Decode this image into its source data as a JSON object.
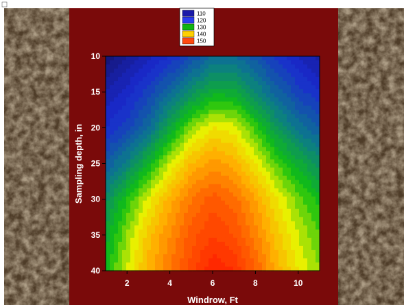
{
  "slide": {
    "panel_color": "#7a0a0a",
    "stone_color": "#5c4730"
  },
  "chart_data": {
    "type": "heatmap",
    "subtype": "filled-contour",
    "xlabel": "Windrow, Ft",
    "ylabel": "Sampling depth, in",
    "xlim": [
      1,
      11
    ],
    "ylim": [
      10,
      40
    ],
    "y_inverted": true,
    "x_ticks": [
      "2",
      "4",
      "6",
      "8",
      "10"
    ],
    "y_ticks": [
      "10",
      "15",
      "20",
      "25",
      "30",
      "35",
      "40"
    ],
    "x": [
      1,
      2,
      3,
      4,
      5,
      6,
      7,
      8,
      9,
      10,
      11
    ],
    "y": [
      10,
      15,
      20,
      25,
      30,
      35,
      40
    ],
    "z": [
      [
        100,
        104,
        107,
        110,
        114,
        118,
        118,
        115,
        111,
        108,
        105
      ],
      [
        106,
        109,
        113,
        118,
        123,
        127,
        127,
        122,
        117,
        113,
        110
      ],
      [
        110,
        113,
        118,
        126,
        134,
        138,
        137,
        131,
        124,
        119,
        116
      ],
      [
        116,
        121,
        128,
        136,
        142,
        145,
        143,
        138,
        132,
        127,
        123
      ],
      [
        123,
        130,
        137,
        143,
        148,
        151,
        149,
        144,
        138,
        133,
        129
      ],
      [
        127,
        134,
        141,
        146,
        151,
        154,
        152,
        147,
        141,
        136,
        132
      ],
      [
        129,
        136,
        143,
        148,
        153,
        158,
        156,
        150,
        143,
        138,
        134
      ]
    ],
    "legend": {
      "position": "top-center",
      "entries": [
        {
          "label": "110",
          "color": "#1a1aa8"
        },
        {
          "label": "120",
          "color": "#2a3cf0"
        },
        {
          "label": "130",
          "color": "#10b410"
        },
        {
          "label": "140",
          "color": "#ffd000"
        },
        {
          "label": "150",
          "color": "#ff4a10"
        }
      ]
    },
    "color_stops": [
      {
        "v": 100,
        "c": "#141470"
      },
      {
        "v": 110,
        "c": "#1a2ad0"
      },
      {
        "v": 120,
        "c": "#0c7a8a"
      },
      {
        "v": 130,
        "c": "#10c010"
      },
      {
        "v": 137,
        "c": "#e8f000"
      },
      {
        "v": 143,
        "c": "#ffb000"
      },
      {
        "v": 150,
        "c": "#ff6000"
      },
      {
        "v": 158,
        "c": "#ff2000"
      }
    ],
    "contour_step": 2
  }
}
